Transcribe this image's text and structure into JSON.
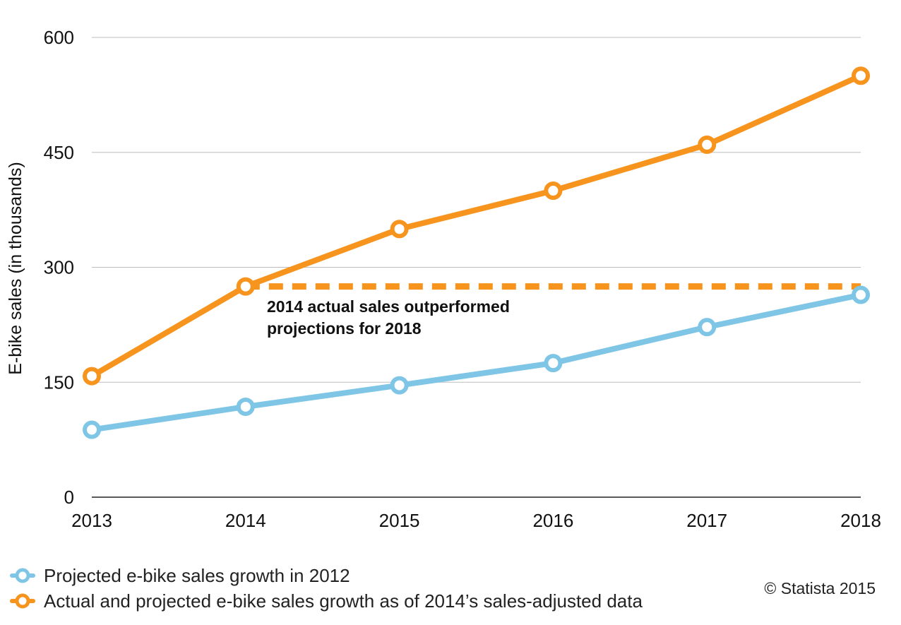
{
  "chart_data": {
    "type": "line",
    "title": "",
    "xlabel": "",
    "ylabel": "E-bike sales (in thousands)",
    "categories": [
      "2013",
      "2014",
      "2015",
      "2016",
      "2017",
      "2018"
    ],
    "ylim": [
      0,
      600
    ],
    "yticks": [
      0,
      150,
      300,
      450,
      600
    ],
    "grid": true,
    "legend_position": "bottom-left",
    "series": [
      {
        "name": "Projected e-bike sales growth in 2012",
        "values": [
          88,
          118,
          146,
          175,
          222,
          264
        ],
        "color": "#7fc6e6"
      },
      {
        "name": "Actual and projected e-bike sales growth as of 2014’s sales-adjusted data",
        "values": [
          158,
          275,
          350,
          400,
          460,
          550
        ],
        "color": "#f7941d"
      }
    ],
    "reference_line": {
      "value": 275,
      "from": "2014",
      "to": "2018",
      "color": "#f7941d",
      "style": "dashed"
    },
    "annotation": {
      "lines": [
        "2014 actual sales outperformed",
        "projections for 2018"
      ]
    },
    "colors": {
      "grid": "#bdbdbd",
      "axis": "#222222"
    }
  },
  "footer": {
    "copyright": "© Statista 2015"
  }
}
